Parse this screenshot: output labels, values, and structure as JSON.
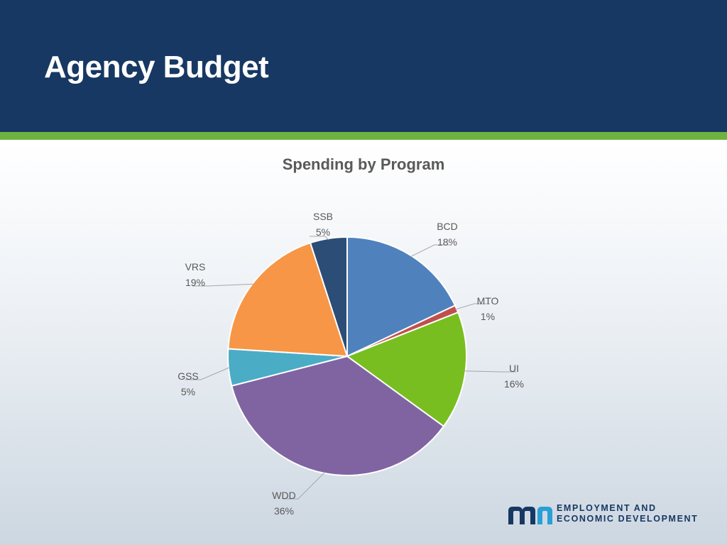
{
  "slide": {
    "title": "Agency Budget",
    "colors": {
      "header": "#173863",
      "accent_bar": "#6db33f"
    }
  },
  "chart_data": {
    "type": "pie",
    "title": "Spending by Program",
    "legend": "none",
    "slices": [
      {
        "name": "BCD",
        "value": 18,
        "label": "18%",
        "color": "#4f81bd"
      },
      {
        "name": "MTO",
        "value": 1,
        "label": "1%",
        "color": "#c0504d"
      },
      {
        "name": "UI",
        "value": 16,
        "label": "16%",
        "color": "#78be20"
      },
      {
        "name": "WDD",
        "value": 36,
        "label": "36%",
        "color": "#8064a2"
      },
      {
        "name": "GSS",
        "value": 5,
        "label": "5%",
        "color": "#4bacc6"
      },
      {
        "name": "VRS",
        "value": 19,
        "label": "19%",
        "color": "#f79646"
      },
      {
        "name": "SSB",
        "value": 5,
        "label": "5%",
        "color": "#2c4d75"
      }
    ]
  },
  "logo": {
    "line1": "EMPLOYMENT AND",
    "line2": "ECONOMIC DEVELOPMENT",
    "color": "#173863"
  }
}
